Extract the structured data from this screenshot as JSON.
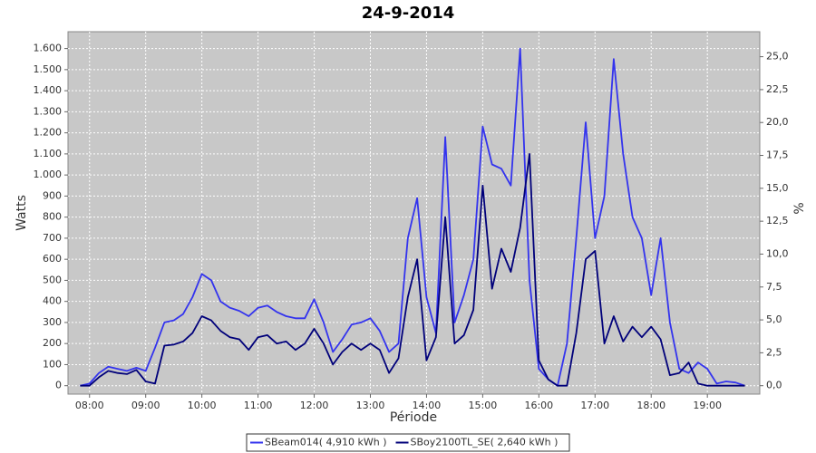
{
  "chart_data": {
    "type": "line",
    "title": "24-9-2014",
    "x_label": "Période",
    "y_label": "Watts",
    "y2_label": "%",
    "x": [
      "07:50",
      "08:00",
      "08:10",
      "08:20",
      "08:30",
      "08:40",
      "08:50",
      "09:00",
      "09:10",
      "09:20",
      "09:30",
      "09:40",
      "09:50",
      "10:00",
      "10:10",
      "10:20",
      "10:30",
      "10:40",
      "10:50",
      "11:00",
      "11:10",
      "11:20",
      "11:30",
      "11:40",
      "11:50",
      "12:00",
      "12:10",
      "12:20",
      "12:30",
      "12:40",
      "12:50",
      "13:00",
      "13:10",
      "13:20",
      "13:30",
      "13:40",
      "13:50",
      "14:00",
      "14:10",
      "14:20",
      "14:30",
      "14:40",
      "14:50",
      "15:00",
      "15:10",
      "15:20",
      "15:30",
      "15:40",
      "15:50",
      "16:00",
      "16:10",
      "16:20",
      "16:30",
      "16:40",
      "16:50",
      "17:00",
      "17:10",
      "17:20",
      "17:30",
      "17:40",
      "17:50",
      "18:00",
      "18:10",
      "18:20",
      "18:30",
      "18:40",
      "18:50",
      "19:00",
      "19:10",
      "19:20",
      "19:30",
      "19:40"
    ],
    "series": [
      {
        "name": "SBeam014( 4,910 kWh )",
        "color": "#3333ee",
        "values": [
          0,
          10,
          60,
          90,
          80,
          70,
          85,
          70,
          180,
          300,
          310,
          340,
          420,
          530,
          500,
          400,
          370,
          355,
          330,
          370,
          380,
          350,
          330,
          320,
          320,
          410,
          300,
          160,
          220,
          290,
          300,
          320,
          260,
          160,
          200,
          700,
          890,
          420,
          250,
          1180,
          300,
          430,
          600,
          1230,
          1050,
          1030,
          950,
          1600,
          500,
          80,
          30,
          0,
          200,
          700,
          1250,
          700,
          900,
          1550,
          1100,
          800,
          700,
          430,
          700,
          300,
          80,
          60,
          110,
          80,
          10,
          20,
          15,
          0
        ]
      },
      {
        "name": "SBoy2100TL_SE( 2,640 kWh )",
        "color": "#00007a",
        "values": [
          0,
          0,
          40,
          70,
          60,
          55,
          75,
          20,
          10,
          190,
          195,
          210,
          250,
          330,
          310,
          260,
          230,
          220,
          170,
          230,
          240,
          200,
          210,
          170,
          200,
          270,
          200,
          100,
          160,
          200,
          170,
          200,
          170,
          60,
          130,
          420,
          600,
          120,
          230,
          800,
          200,
          240,
          360,
          950,
          460,
          650,
          540,
          750,
          1100,
          120,
          30,
          0,
          0,
          250,
          600,
          640,
          200,
          330,
          210,
          280,
          230,
          280,
          220,
          50,
          60,
          110,
          10,
          0,
          0,
          0,
          0,
          0
        ]
      }
    ],
    "xlim": [
      "07:37",
      "19:56"
    ],
    "xticks": [
      "08:00",
      "09:00",
      "10:00",
      "11:00",
      "12:00",
      "13:00",
      "14:00",
      "15:00",
      "16:00",
      "17:00",
      "18:00",
      "19:00"
    ],
    "ylim": [
      -40,
      1680
    ],
    "yticks": [
      0,
      100,
      200,
      300,
      400,
      500,
      600,
      700,
      800,
      900,
      {
        "value": 1000,
        "label": "1.000"
      },
      {
        "value": 1100,
        "label": "1.100"
      },
      {
        "value": 1200,
        "label": "1.200"
      },
      {
        "value": 1300,
        "label": "1.300"
      },
      {
        "value": 1400,
        "label": "1.400"
      },
      {
        "value": 1500,
        "label": "1.500"
      },
      {
        "value": 1600,
        "label": "1.600"
      }
    ],
    "y2lim": [
      -0.64,
      26.9
    ],
    "y2ticks": [
      {
        "value": 0,
        "label": "0,0"
      },
      {
        "value": 2.5,
        "label": "2,5"
      },
      {
        "value": 5,
        "label": "5,0"
      },
      {
        "value": 7.5,
        "label": "7,5"
      },
      {
        "value": 10,
        "label": "10,0"
      },
      {
        "value": 12.5,
        "label": "12,5"
      },
      {
        "value": 15,
        "label": "15,0"
      },
      {
        "value": 17.5,
        "label": "17,5"
      },
      {
        "value": 20,
        "label": "20,0"
      },
      {
        "value": 22.5,
        "label": "22,5"
      },
      {
        "value": 25,
        "label": "25,0"
      }
    ],
    "grid": true,
    "legend": "bottom"
  }
}
